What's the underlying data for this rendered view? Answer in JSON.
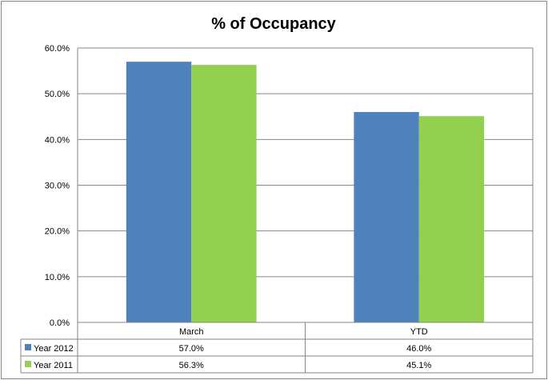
{
  "chart_data": {
    "type": "bar",
    "title": "% of Occupancy",
    "categories": [
      "March",
      "YTD"
    ],
    "series": [
      {
        "name": "Year 2012",
        "values": [
          57.0,
          46.0
        ],
        "labels": [
          "57.0%",
          "46.0%"
        ],
        "color": "#4f81bd"
      },
      {
        "name": "Year 2011",
        "values": [
          56.3,
          45.1
        ],
        "labels": [
          "56.3%",
          "45.1%"
        ],
        "color": "#92d050"
      }
    ],
    "ylim": [
      0,
      60
    ],
    "yticks": [
      "0.0%",
      "10.0%",
      "20.0%",
      "30.0%",
      "40.0%",
      "50.0%",
      "60.0%"
    ],
    "grid": true,
    "legend": "data-table"
  }
}
